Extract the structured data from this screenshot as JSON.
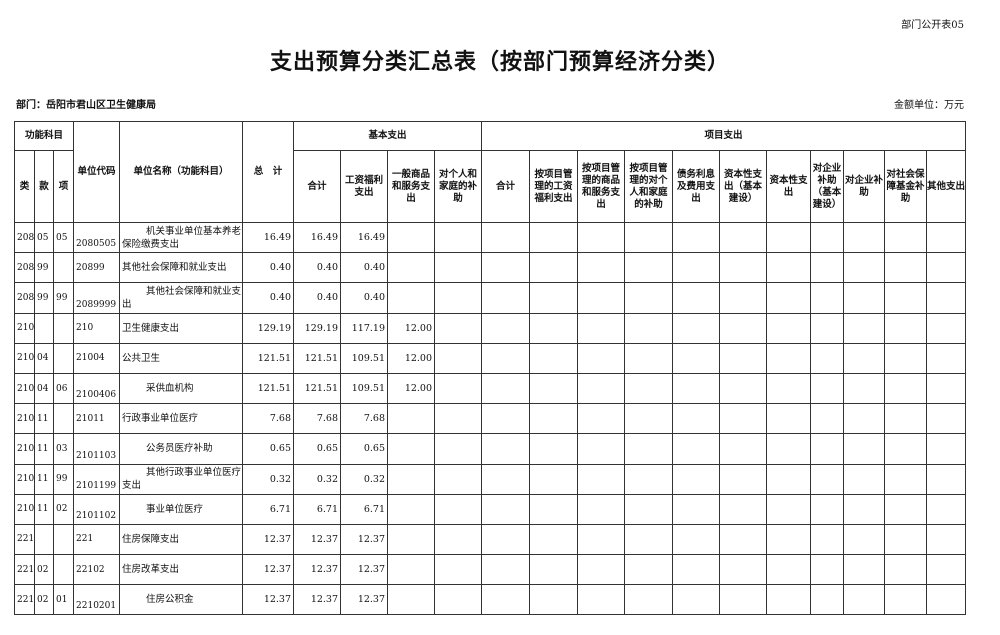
{
  "corner_label": "部门公开表05",
  "title": "支出预算分类汇总表（按部门预算经济分类）",
  "department": "部门：岳阳市君山区卫生健康局",
  "unit": "金额单位：万元",
  "headers": {
    "func_subject": "功能科目",
    "lei": "类",
    "kuan": "款",
    "xiang": "项",
    "unit_code": "单位代码",
    "unit_name": "单位名称（功能科目）",
    "total": "总　计",
    "basic": "基本支出",
    "project": "项目支出",
    "basic_cols": [
      "合计",
      "工资福利支出",
      "一般商品和服务支出",
      "对个人和家庭的补助"
    ],
    "project_cols": [
      "合计",
      "按项目管理的工资福利支出",
      "按项目管理的商品和服务支出",
      "按项目管理的对个人和家庭的补助",
      "债务利息及费用支出",
      "资本性支出（基本建设）",
      "资本性支出",
      "对企业补助（基本建设）",
      "对企业补助",
      "对社会保障基金补助",
      "其他支出"
    ]
  },
  "rows": [
    {
      "lei": "208",
      "kuan": "05",
      "xiang": "05",
      "code": "2080505",
      "name": "机关事业单位基本养老保险缴费支出",
      "total": "16.49",
      "b_total": "16.49",
      "b_wage": "16.49",
      "b_goods": "",
      "b_personal": ""
    },
    {
      "lei": "208",
      "kuan": "99",
      "xiang": "",
      "code": "20899",
      "name": "其他社会保障和就业支出",
      "total": "0.40",
      "b_total": "0.40",
      "b_wage": "0.40",
      "b_goods": "",
      "b_personal": ""
    },
    {
      "lei": "208",
      "kuan": "99",
      "xiang": "99",
      "code": "2089999",
      "name": "其他社会保障和就业支出",
      "total": "0.40",
      "b_total": "0.40",
      "b_wage": "0.40",
      "b_goods": "",
      "b_personal": ""
    },
    {
      "lei": "210",
      "kuan": "",
      "xiang": "",
      "code": "210",
      "name": "卫生健康支出",
      "total": "129.19",
      "b_total": "129.19",
      "b_wage": "117.19",
      "b_goods": "12.00",
      "b_personal": ""
    },
    {
      "lei": "210",
      "kuan": "04",
      "xiang": "",
      "code": "21004",
      "name": "公共卫生",
      "total": "121.51",
      "b_total": "121.51",
      "b_wage": "109.51",
      "b_goods": "12.00",
      "b_personal": ""
    },
    {
      "lei": "210",
      "kuan": "04",
      "xiang": "06",
      "code": "2100406",
      "name": "采供血机构",
      "total": "121.51",
      "b_total": "121.51",
      "b_wage": "109.51",
      "b_goods": "12.00",
      "b_personal": ""
    },
    {
      "lei": "210",
      "kuan": "11",
      "xiang": "",
      "code": "21011",
      "name": "行政事业单位医疗",
      "total": "7.68",
      "b_total": "7.68",
      "b_wage": "7.68",
      "b_goods": "",
      "b_personal": ""
    },
    {
      "lei": "210",
      "kuan": "11",
      "xiang": "03",
      "code": "2101103",
      "name": "公务员医疗补助",
      "total": "0.65",
      "b_total": "0.65",
      "b_wage": "0.65",
      "b_goods": "",
      "b_personal": ""
    },
    {
      "lei": "210",
      "kuan": "11",
      "xiang": "99",
      "code": "2101199",
      "name": "其他行政事业单位医疗支出",
      "total": "0.32",
      "b_total": "0.32",
      "b_wage": "0.32",
      "b_goods": "",
      "b_personal": ""
    },
    {
      "lei": "210",
      "kuan": "11",
      "xiang": "02",
      "code": "2101102",
      "name": "事业单位医疗",
      "total": "6.71",
      "b_total": "6.71",
      "b_wage": "6.71",
      "b_goods": "",
      "b_personal": ""
    },
    {
      "lei": "221",
      "kuan": "",
      "xiang": "",
      "code": "221",
      "name": "住房保障支出",
      "total": "12.37",
      "b_total": "12.37",
      "b_wage": "12.37",
      "b_goods": "",
      "b_personal": ""
    },
    {
      "lei": "221",
      "kuan": "02",
      "xiang": "",
      "code": "22102",
      "name": "住房改革支出",
      "total": "12.37",
      "b_total": "12.37",
      "b_wage": "12.37",
      "b_goods": "",
      "b_personal": ""
    },
    {
      "lei": "221",
      "kuan": "02",
      "xiang": "01",
      "code": "2210201",
      "name": "住房公积金",
      "total": "12.37",
      "b_total": "12.37",
      "b_wage": "12.37",
      "b_goods": "",
      "b_personal": ""
    }
  ]
}
